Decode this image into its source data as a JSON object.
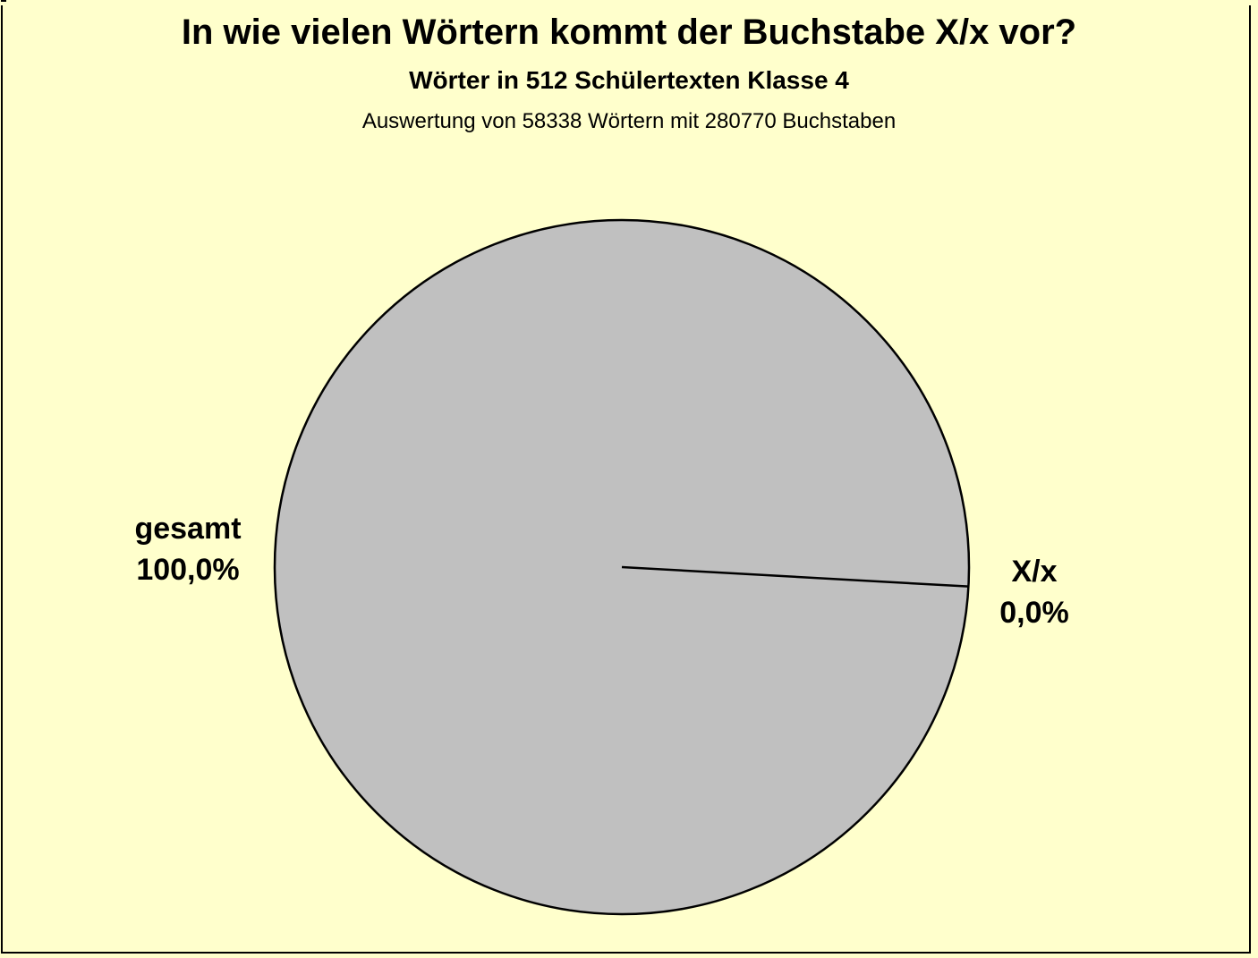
{
  "chart_data": {
    "type": "pie",
    "title": "In wie vielen Wörtern kommt der Buchstabe X/x vor?",
    "subtitle": "Wörter in 512 Schülertexten Klasse 4",
    "note": "Auswertung von 58338 Wörtern mit 280770 Buchstaben",
    "slices": [
      {
        "name": "gesamt",
        "percent": 100.0,
        "label": "100,0%",
        "color": "#c0c0c0"
      },
      {
        "name": "X/x",
        "percent": 0.0,
        "label": "0,0%",
        "color": "#c0c0c0"
      }
    ],
    "background": "#ffffcc",
    "legend": "none"
  }
}
